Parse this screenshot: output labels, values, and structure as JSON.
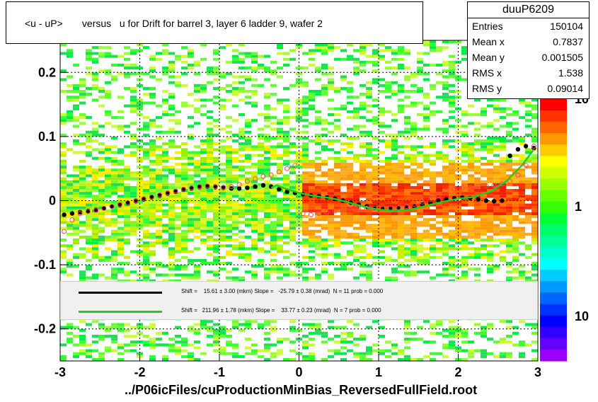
{
  "title": "<u - uP>       versus   u for Drift for barrel 3, layer 6 ladder 9, wafer 2",
  "x_axis_title": "../P06icFiles/cuProductionMinBias_ReversedFullField.root",
  "stats": {
    "name": "duuP6209",
    "rows": [
      {
        "label": "Entries",
        "value": "150104"
      },
      {
        "label": "Mean x",
        "value": "0.7837"
      },
      {
        "label": "Mean y",
        "value": "0.001505"
      },
      {
        "label": "RMS x",
        "value": "1.538"
      },
      {
        "label": "RMS y",
        "value": "0.09014"
      }
    ]
  },
  "legend": {
    "fit1": {
      "color": "#000000",
      "text": "Shift =    15.61 ± 3.00 (mkm) Slope =   -25.79 ± 0.38 (mrad)  N = 11 prob = 0.000"
    },
    "fit2": {
      "color": "#22cc22",
      "text": "Shift =   211.96 ± 1.78 (mkm) Slope =    33.77 ± 0.23 (mrad)  N = 7 prob = 0.000"
    }
  },
  "colors": {
    "black_markers": "#000000",
    "open_markers": "#ff4466",
    "fit_line": "#22cc22"
  },
  "chart_data": {
    "type": "heatmap",
    "xlim": [
      -3,
      3
    ],
    "ylim": [
      -0.25,
      0.25
    ],
    "x_ticks": [
      "-3",
      "-2",
      "-1",
      "0",
      "1",
      "2",
      "3"
    ],
    "y_ticks": [
      "-0.2",
      "-0.1",
      "0",
      "0.1",
      "0.2"
    ],
    "colorbar_ticks": [
      "10",
      "1",
      "10"
    ],
    "grid": true,
    "series": [
      {
        "style": "filled-circle",
        "points": [
          [
            -2.95,
            -0.022
          ],
          [
            -2.85,
            -0.02
          ],
          [
            -2.75,
            -0.018
          ],
          [
            -2.65,
            -0.016
          ],
          [
            -2.55,
            -0.014
          ],
          [
            -2.45,
            -0.012
          ],
          [
            -2.35,
            -0.009
          ],
          [
            -2.25,
            -0.007
          ],
          [
            -2.15,
            -0.004
          ],
          [
            -2.05,
            -0.001
          ],
          [
            -1.95,
            0.002
          ],
          [
            -1.85,
            0.005
          ],
          [
            -1.75,
            0.008
          ],
          [
            -1.65,
            0.011
          ],
          [
            -1.55,
            0.014
          ],
          [
            -1.45,
            0.017
          ],
          [
            -1.35,
            0.019
          ],
          [
            -1.25,
            0.021
          ],
          [
            -1.15,
            0.022
          ],
          [
            -1.05,
            0.021
          ],
          [
            -0.95,
            0.02
          ],
          [
            -0.85,
            0.019
          ],
          [
            -0.75,
            0.019
          ],
          [
            -0.65,
            0.02
          ],
          [
            -0.55,
            0.022
          ],
          [
            -0.45,
            0.024
          ],
          [
            -0.35,
            0.022
          ],
          [
            -0.25,
            0.018
          ],
          [
            -0.15,
            0.014
          ],
          [
            -0.05,
            0.012
          ],
          [
            0.05,
            0.01
          ],
          [
            0.15,
            0.008
          ],
          [
            0.25,
            0.007
          ],
          [
            0.35,
            0.005
          ],
          [
            0.45,
            0.003
          ],
          [
            0.55,
            0.0
          ],
          [
            0.65,
            -0.003
          ],
          [
            0.75,
            -0.006
          ],
          [
            0.85,
            -0.009
          ],
          [
            0.95,
            -0.011
          ],
          [
            1.05,
            -0.012
          ],
          [
            1.15,
            -0.012
          ],
          [
            1.25,
            -0.012
          ],
          [
            1.35,
            -0.011
          ],
          [
            1.45,
            -0.009
          ],
          [
            1.55,
            -0.006
          ],
          [
            1.65,
            -0.003
          ],
          [
            1.75,
            0.0
          ],
          [
            1.85,
            0.002
          ],
          [
            1.95,
            0.004
          ],
          [
            2.05,
            0.005
          ],
          [
            2.15,
            0.004
          ],
          [
            2.25,
            0.002
          ],
          [
            2.35,
            0.0
          ],
          [
            2.45,
            -0.001
          ],
          [
            2.55,
            0.0
          ],
          [
            2.65,
            0.07
          ],
          [
            2.75,
            0.08
          ],
          [
            2.85,
            0.085
          ],
          [
            2.95,
            0.082
          ]
        ]
      },
      {
        "style": "open-circle",
        "points": [
          [
            -2.95,
            -0.048
          ],
          [
            -2.85,
            -0.03
          ],
          [
            -2.75,
            -0.02
          ],
          [
            -2.65,
            -0.017
          ],
          [
            -2.55,
            -0.015
          ],
          [
            -2.45,
            -0.012
          ],
          [
            -2.35,
            -0.009
          ],
          [
            -2.25,
            -0.006
          ],
          [
            -2.15,
            -0.003
          ],
          [
            -2.05,
            0.0
          ],
          [
            -1.95,
            0.003
          ],
          [
            -1.85,
            0.006
          ],
          [
            -1.75,
            0.009
          ],
          [
            -1.65,
            0.012
          ],
          [
            -1.55,
            0.015
          ],
          [
            -1.45,
            0.018
          ],
          [
            -1.35,
            0.02
          ],
          [
            -1.25,
            0.022
          ],
          [
            -1.15,
            0.023
          ],
          [
            -1.05,
            0.022
          ],
          [
            -0.95,
            0.021
          ],
          [
            -0.85,
            0.022
          ],
          [
            -0.75,
            0.025
          ],
          [
            -0.65,
            0.03
          ],
          [
            -0.55,
            0.034
          ],
          [
            -0.45,
            0.038
          ],
          [
            -0.35,
            0.04
          ],
          [
            -0.25,
            0.045
          ],
          [
            -0.15,
            0.05
          ],
          [
            -0.05,
            0.055
          ],
          [
            0.05,
            -0.02
          ],
          [
            0.15,
            -0.022
          ],
          [
            0.25,
            -0.02
          ],
          [
            0.35,
            -0.018
          ],
          [
            0.45,
            -0.016
          ],
          [
            0.55,
            -0.014
          ],
          [
            0.65,
            -0.013
          ],
          [
            0.75,
            -0.012
          ],
          [
            0.85,
            -0.012
          ],
          [
            0.95,
            -0.012
          ],
          [
            1.05,
            -0.012
          ],
          [
            1.15,
            -0.012
          ],
          [
            1.25,
            -0.011
          ],
          [
            1.35,
            -0.009
          ],
          [
            1.45,
            -0.006
          ],
          [
            1.55,
            -0.002
          ],
          [
            1.65,
            0.002
          ],
          [
            1.75,
            0.008
          ],
          [
            1.85,
            0.014
          ],
          [
            1.95,
            0.018
          ],
          [
            2.05,
            0.02
          ],
          [
            2.15,
            0.021
          ],
          [
            2.25,
            0.022
          ],
          [
            2.35,
            0.023
          ],
          [
            2.45,
            0.024
          ],
          [
            2.55,
            0.026
          ],
          [
            2.65,
            0.03
          ],
          [
            2.75,
            0.04
          ],
          [
            2.85,
            0.055
          ],
          [
            2.95,
            0.085
          ]
        ]
      },
      {
        "style": "line",
        "points": [
          [
            -0.35,
            0.02
          ],
          [
            -0.28,
            0.024
          ],
          [
            -0.2,
            0.02
          ],
          [
            -0.1,
            0.016
          ],
          [
            0.0,
            0.012
          ],
          [
            0.2,
            0.007
          ],
          [
            0.4,
            0.004
          ],
          [
            0.6,
            -0.002
          ],
          [
            0.8,
            -0.009
          ],
          [
            1.0,
            -0.014
          ],
          [
            1.2,
            -0.016
          ],
          [
            1.4,
            -0.014
          ],
          [
            1.6,
            -0.008
          ],
          [
            1.8,
            -0.002
          ],
          [
            2.0,
            0.003
          ],
          [
            2.2,
            0.006
          ],
          [
            2.4,
            0.014
          ],
          [
            2.6,
            0.03
          ],
          [
            2.8,
            0.055
          ],
          [
            2.95,
            0.08
          ]
        ]
      }
    ]
  }
}
